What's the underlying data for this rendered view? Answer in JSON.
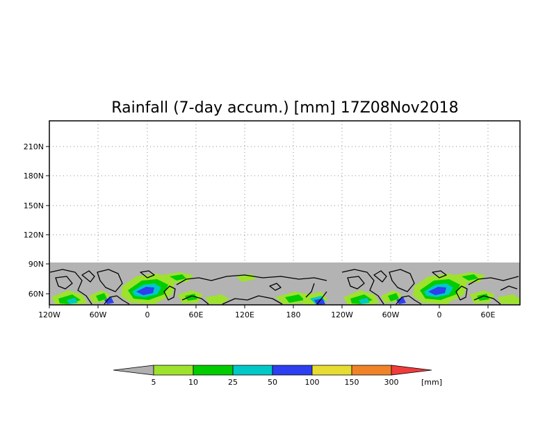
{
  "title": "Rainfall (7-day accum.) [mm] 17Z08Nov2018",
  "map": {
    "lat_ticks": [
      "210N",
      "180N",
      "150N",
      "120N",
      "90N",
      "60N"
    ],
    "lon_ticks": [
      "120W",
      "60W",
      "0",
      "60E",
      "120E",
      "180",
      "120W",
      "60W",
      "0",
      "60E"
    ],
    "no_data_color": "#b3b3b3",
    "data_band": "Arctic rainfall field (about 48N to 90N), Americas-Europe-Asia repeated"
  },
  "colorbar": {
    "unit": "[mm]",
    "labels": [
      "5",
      "10",
      "25",
      "50",
      "100",
      "150",
      "300"
    ],
    "colors": [
      "#b0b0b0",
      "#9ee22d",
      "#00cc00",
      "#00c8c8",
      "#2d3ff0",
      "#e6dc32",
      "#f08228",
      "#f03c3c"
    ]
  }
}
